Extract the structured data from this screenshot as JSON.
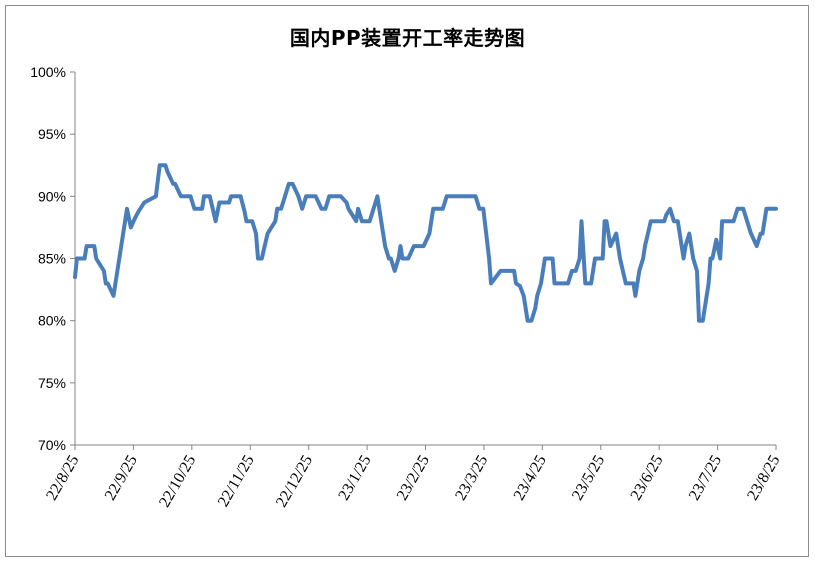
{
  "chart_data": {
    "type": "line",
    "title": "国内PP装置开工率走势图",
    "xlabel": "",
    "ylabel": "",
    "ylim": [
      70,
      100
    ],
    "y_ticks": [
      "70%",
      "75%",
      "80%",
      "85%",
      "90%",
      "95%",
      "100%"
    ],
    "x_tick_labels": [
      "22/8/25",
      "22/9/25",
      "22/10/25",
      "22/11/25",
      "22/12/25",
      "23/1/25",
      "23/2/25",
      "23/3/25",
      "23/4/25",
      "23/5/25",
      "23/6/25",
      "23/7/25",
      "23/8/25"
    ],
    "grid": false,
    "legend": "none",
    "colors": {
      "line": "#4a7ebb",
      "axis": "#868686"
    },
    "series": [
      {
        "x_day": [
          0,
          1,
          5,
          6,
          10,
          11,
          13,
          15,
          16,
          17,
          20,
          23,
          27,
          29,
          31,
          33,
          36,
          42,
          44,
          47,
          48,
          51,
          52,
          55,
          57,
          60,
          62,
          66,
          67,
          70,
          73,
          75,
          77,
          80,
          81,
          86,
          88,
          89,
          92,
          94,
          95,
          97,
          100,
          104,
          105,
          107,
          111,
          113,
          116,
          118,
          120,
          121,
          125,
          128,
          130,
          132,
          135,
          137,
          138,
          141,
          142,
          146,
          147,
          149,
          150,
          153,
          155,
          157,
          158,
          159,
          161,
          163,
          164,
          166,
          168,
          169,
          170,
          173,
          176,
          179,
          181,
          184,
          186,
          187,
          191,
          193,
          195,
          201,
          205,
          207,
          208,
          210,
          212,
          215,
          216,
          221,
          223,
          228,
          229,
          231,
          233,
          235,
          237,
          239,
          240,
          242,
          244,
          246,
          248,
          249,
          251,
          254,
          256,
          258,
          260,
          262,
          263,
          265,
          267,
          268,
          270,
          274,
          275,
          276,
          278,
          281,
          283,
          286,
          290,
          291,
          293,
          295,
          296,
          299,
          303,
          306,
          307,
          309,
          311,
          313,
          316,
          317,
          319,
          321,
          323,
          324,
          326,
          329,
          330,
          331,
          333,
          335,
          336,
          340,
          342,
          344,
          347,
          349,
          351,
          354,
          356,
          357,
          359,
          361,
          364
        ],
        "values": [
          83.5,
          85,
          85,
          86,
          86,
          85,
          84.5,
          84,
          83,
          83,
          82,
          85,
          89,
          87.5,
          88.2,
          88.8,
          89.5,
          90,
          92.5,
          92.5,
          92,
          91,
          91,
          90,
          90,
          90,
          89,
          89,
          90,
          90,
          88,
          89.5,
          89.5,
          89.5,
          90,
          90,
          88.8,
          88,
          88,
          87,
          85,
          85,
          87,
          88,
          89,
          89,
          91,
          91,
          90,
          89,
          90,
          90,
          90,
          89,
          89,
          90,
          90,
          90,
          90,
          89.5,
          89,
          88,
          89,
          88,
          88,
          88,
          89,
          90,
          89,
          88,
          86,
          85,
          85,
          84,
          85,
          86,
          85,
          85,
          86,
          86,
          86,
          87,
          89,
          89,
          89,
          90,
          90,
          90,
          90,
          90,
          90,
          89,
          89,
          85,
          83,
          84,
          84,
          84,
          83,
          82.8,
          82,
          80,
          80,
          81,
          82,
          83,
          85,
          85,
          85,
          83,
          83,
          83,
          83,
          84,
          84,
          85,
          88,
          83,
          83,
          83,
          85,
          85,
          88,
          88,
          86,
          87,
          85,
          83,
          83,
          82,
          84,
          85,
          86,
          88,
          88,
          88,
          88.5,
          89,
          88,
          88,
          85,
          86,
          87,
          85,
          84,
          80,
          80,
          83,
          85,
          85,
          86.5,
          85,
          88,
          88,
          88,
          89,
          89,
          88,
          87,
          86,
          87,
          87,
          89,
          89,
          89
        ]
      }
    ]
  }
}
